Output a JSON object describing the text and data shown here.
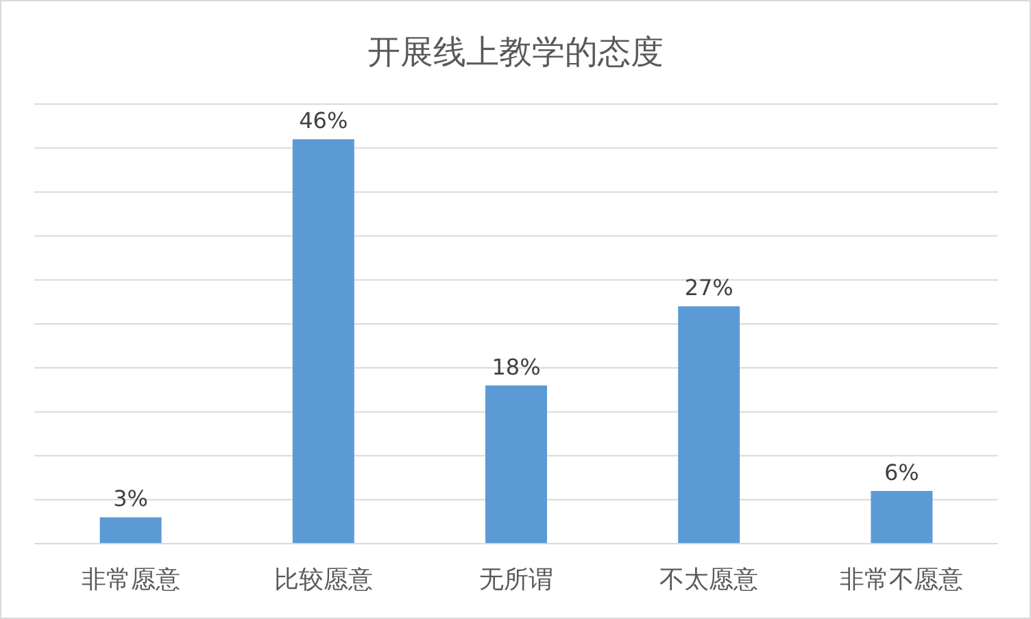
{
  "chart_data": {
    "type": "bar",
    "title": "开展线上教学的态度",
    "categories": [
      "非常愿意",
      "比较愿意",
      "无所谓",
      "不太愿意",
      "非常不愿意"
    ],
    "values": [
      3,
      46,
      18,
      27,
      6
    ],
    "value_labels": [
      "3%",
      "46%",
      "18%",
      "27%",
      "6%"
    ],
    "color": "#5b9bd5",
    "ylim": [
      0,
      50
    ],
    "yticks": [
      {
        "value": 0,
        "label": null
      },
      {
        "value": 5,
        "label": null
      },
      {
        "value": 10,
        "label": null
      },
      {
        "value": 15,
        "label": null
      },
      {
        "value": 20,
        "label": null
      },
      {
        "value": 25,
        "label": null
      },
      {
        "value": 30,
        "label": null
      },
      {
        "value": 35,
        "label": null
      },
      {
        "value": 40,
        "label": null
      },
      {
        "value": 45,
        "label": null
      },
      {
        "value": 50,
        "label": null
      }
    ],
    "grid": "y",
    "tick_labels": "x"
  }
}
